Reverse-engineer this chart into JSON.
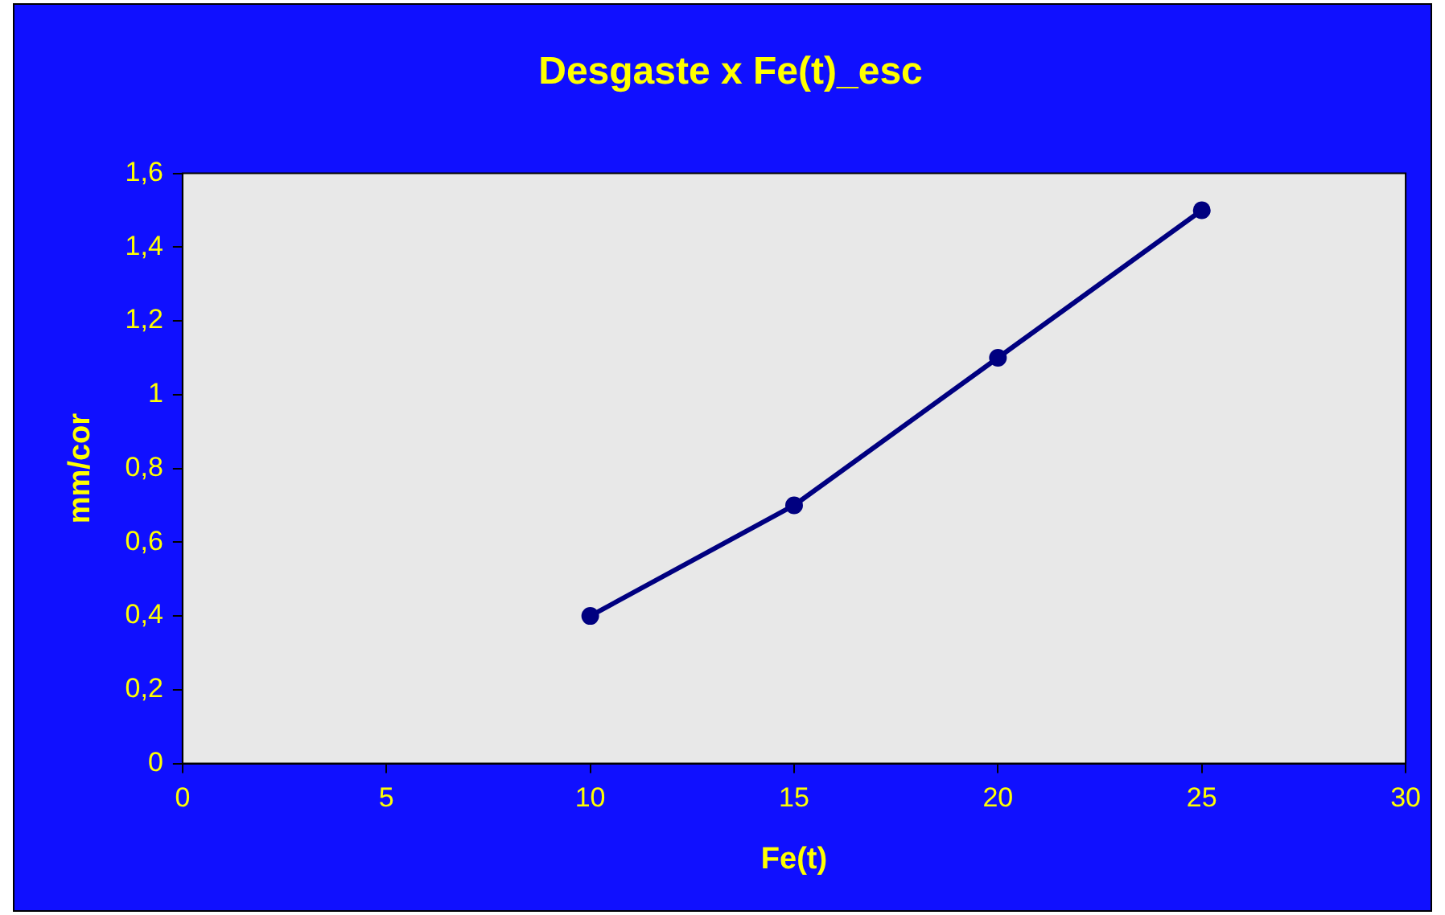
{
  "chart_data": {
    "type": "line",
    "title": "Desgaste x Fe(t)_esc",
    "xlabel": "Fe(t)",
    "ylabel": "mm/cor",
    "x": [
      10,
      15,
      20,
      25
    ],
    "series": [
      {
        "color": "#000080",
        "values": [
          0.4,
          0.7,
          1.1,
          1.5
        ]
      }
    ],
    "xlim": [
      0,
      30
    ],
    "xticks": [
      0,
      5,
      10,
      15,
      20,
      25,
      30
    ],
    "ylim": [
      0,
      1.6
    ],
    "yticks": [
      0,
      {
        "value": 0.2,
        "label": "0,2"
      },
      {
        "value": 0.4,
        "label": "0,4"
      },
      {
        "value": 0.6,
        "label": "0,6"
      },
      {
        "value": 0.8,
        "label": "0,8"
      },
      1,
      {
        "value": 1.2,
        "label": "1,2"
      },
      {
        "value": 1.4,
        "label": "1,4"
      },
      {
        "value": 1.6,
        "label": "1,6"
      }
    ],
    "grid": false,
    "legend": false,
    "marker": "circle",
    "line_style": "solid"
  }
}
